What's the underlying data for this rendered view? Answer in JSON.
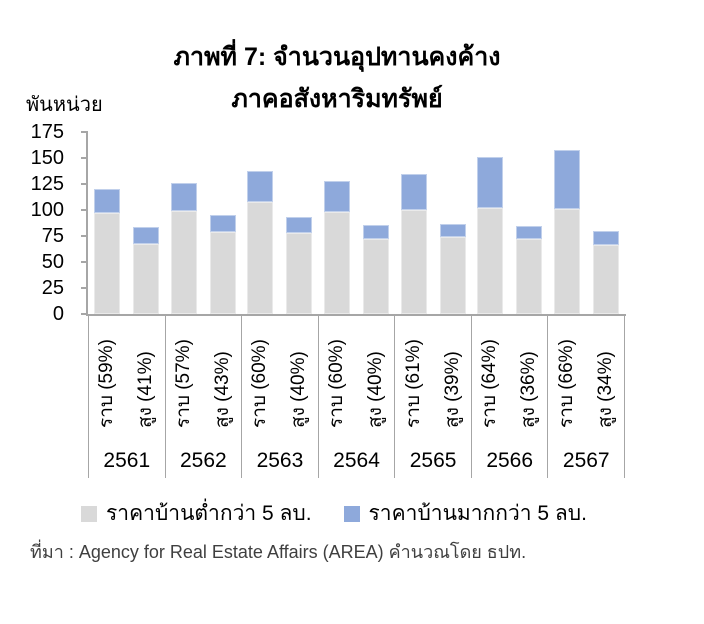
{
  "figure": {
    "title_line1": "ภาพที่ 7: จำนวนอุปทานคงค้าง",
    "title_line2": "ภาคอสังหาริมทรัพย์",
    "y_axis_unit": "พันหน่วย",
    "source": "ที่มา : Agency for Real Estate Affairs (AREA) คำนวณโดย ธปท."
  },
  "legend": {
    "items": [
      {
        "label": "ราคาบ้านต่ำกว่า 5 ลบ.",
        "color": "#d9d9d9"
      },
      {
        "label": "ราคาบ้านมากกว่า 5 ลบ.",
        "color": "#8ea9db"
      }
    ]
  },
  "colors": {
    "axis": "#a6a6a6",
    "bar_below_5m": "#d9d9d9",
    "bar_above_5m": "#8ea9db",
    "text": "#000000",
    "source_text": "#3f3f3f"
  },
  "chart_data": {
    "type": "bar",
    "stacked": true,
    "title": "ภาพที่ 7: จำนวนอุปทานคงค้าง ภาคอสังหาริมทรัพย์",
    "ylabel": "พันหน่วย",
    "ylim": [
      0,
      175
    ],
    "y_ticks": [
      175,
      150,
      125,
      100,
      75,
      50,
      25,
      0
    ],
    "grid": false,
    "legend_position": "bottom",
    "series_names": [
      "ราคาบ้านต่ำกว่า 5 ลบ.",
      "ราคาบ้านมากกว่า 5 ลบ."
    ],
    "series_colors": [
      "#d9d9d9",
      "#8ea9db"
    ],
    "groups": [
      {
        "year": "2561",
        "bars": [
          {
            "label": "ราบ (59%)",
            "values": [
              97,
              23
            ]
          },
          {
            "label": "สูง (41%)",
            "values": [
              67,
              17
            ]
          }
        ]
      },
      {
        "year": "2562",
        "bars": [
          {
            "label": "ราบ (57%)",
            "values": [
              99,
              27
            ]
          },
          {
            "label": "สูง (43%)",
            "values": [
              79,
              16
            ]
          }
        ]
      },
      {
        "year": "2563",
        "bars": [
          {
            "label": "ราบ (60%)",
            "values": [
              108,
              30
            ]
          },
          {
            "label": "สูง (40%)",
            "values": [
              78,
              15
            ]
          }
        ]
      },
      {
        "year": "2564",
        "bars": [
          {
            "label": "ราบ (60%)",
            "values": [
              98,
              30
            ]
          },
          {
            "label": "สูง (40%)",
            "values": [
              72,
              14
            ]
          }
        ]
      },
      {
        "year": "2565",
        "bars": [
          {
            "label": "ราบ (61%)",
            "values": [
              100,
              35
            ]
          },
          {
            "label": "สูง (39%)",
            "values": [
              74,
              13
            ]
          }
        ]
      },
      {
        "year": "2566",
        "bars": [
          {
            "label": "ราบ (64%)",
            "values": [
              102,
              49
            ]
          },
          {
            "label": "สูง (36%)",
            "values": [
              72,
              13
            ]
          }
        ]
      },
      {
        "year": "2567",
        "bars": [
          {
            "label": "ราบ (66%)",
            "values": [
              101,
              57
            ]
          },
          {
            "label": "สูง (34%)",
            "values": [
              66,
              14
            ]
          }
        ]
      }
    ]
  }
}
